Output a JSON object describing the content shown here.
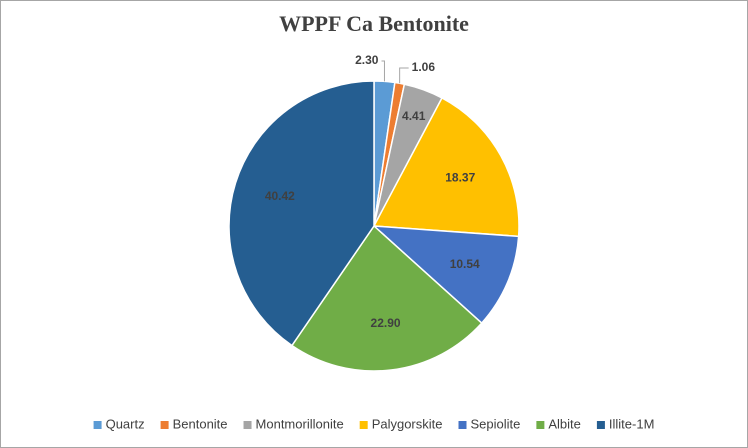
{
  "chart_data": {
    "type": "pie",
    "title": "WPPF  Ca Bentonite",
    "categories": [
      "Quartz",
      "Bentonite",
      "Montmorillonite",
      "Palygorskite",
      "Sepiolite",
      "Albite",
      "Illite-1M"
    ],
    "values": [
      2.3,
      1.06,
      4.41,
      18.37,
      10.54,
      22.9,
      40.42
    ],
    "value_labels": [
      "2.30",
      "1.06",
      "4.41",
      "18.37",
      "10.54",
      "22.90",
      "40.42"
    ],
    "colors": [
      "#5b9bd5",
      "#ed7d31",
      "#a5a5a5",
      "#ffc000",
      "#4472c4",
      "#70ad47",
      "#255e91"
    ],
    "legend": "bottom"
  }
}
